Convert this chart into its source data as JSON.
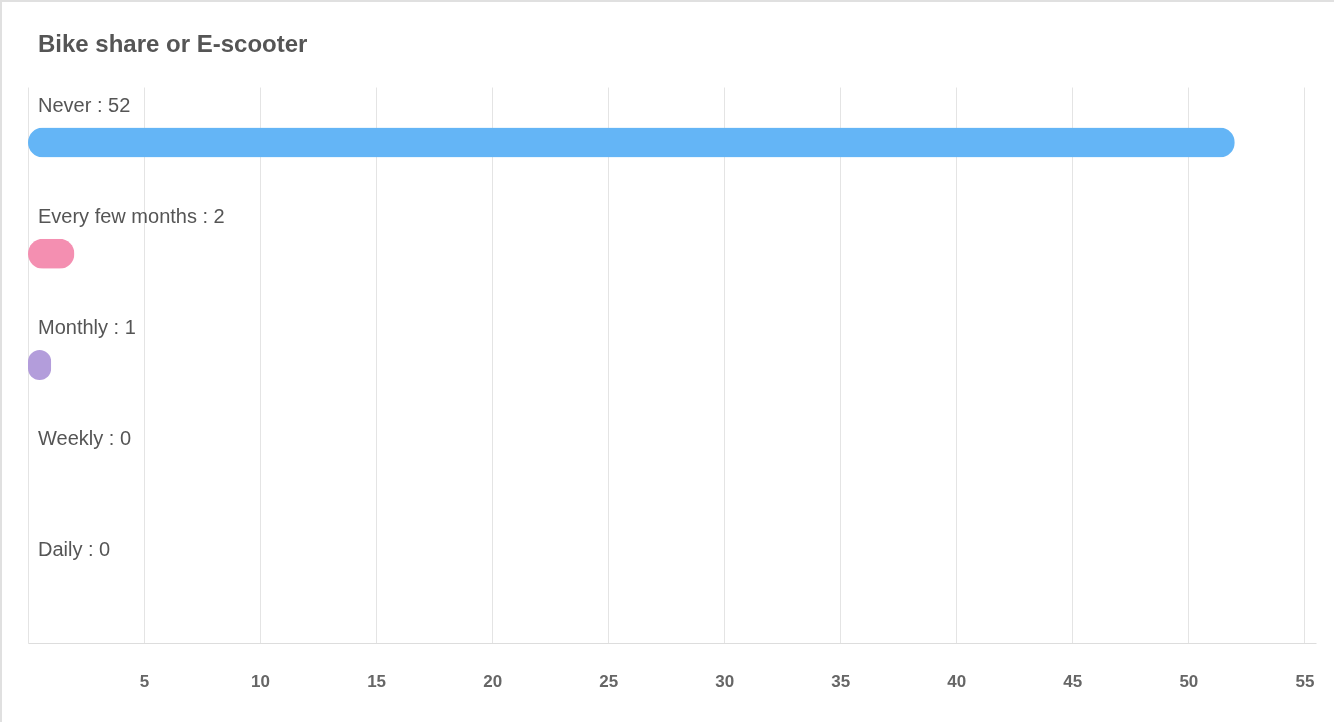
{
  "chart_data": {
    "type": "bar",
    "title": "Bike share or E-scooter",
    "orientation": "horizontal",
    "categories": [
      "Never : 52",
      "Every few months : 2",
      "Monthly : 1",
      "Weekly : 0",
      "Daily : 0"
    ],
    "values": [
      52,
      2,
      1,
      0,
      0
    ],
    "colors": [
      "#64b5f6",
      "#f48fb1",
      "#b39ddb",
      "#80cbc4",
      "#ffcc80"
    ],
    "xlim": [
      0,
      55.5
    ],
    "xticks": [
      {
        "value": 0,
        "label": null
      },
      5,
      10,
      15,
      20,
      25,
      30,
      35,
      40,
      45,
      50,
      55
    ],
    "grid": "x"
  }
}
